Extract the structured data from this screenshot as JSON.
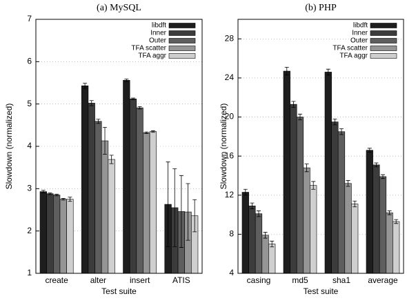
{
  "chart_data": [
    {
      "type": "bar",
      "title": "(a) MySQL",
      "xlabel": "Test suite",
      "ylabel": "Slowdown (normalized)",
      "categories": [
        "create",
        "alter",
        "insert",
        "ATIS"
      ],
      "series": [
        {
          "name": "libdft",
          "color": "#1e1e1e",
          "values": [
            2.93,
            5.43,
            5.56,
            2.63
          ],
          "errors": [
            0.03,
            0.06,
            0.03,
            1.0
          ]
        },
        {
          "name": "Inner",
          "color": "#3c3c3c",
          "values": [
            2.88,
            5.02,
            5.12,
            2.55
          ],
          "errors": [
            0.02,
            0.06,
            0.02,
            0.92
          ]
        },
        {
          "name": "Outer",
          "color": "#5e5e5e",
          "values": [
            2.85,
            4.59,
            4.91,
            2.46
          ],
          "errors": [
            0.02,
            0.05,
            0.03,
            0.85
          ]
        },
        {
          "name": "TFA scatter",
          "color": "#959595",
          "values": [
            2.75,
            4.13,
            4.32,
            2.45
          ],
          "errors": [
            0.02,
            0.32,
            0.02,
            0.67
          ]
        },
        {
          "name": "TFA aggr",
          "color": "#cfcfcf",
          "values": [
            2.75,
            3.69,
            4.35,
            2.36
          ],
          "errors": [
            0.05,
            0.1,
            0.02,
            0.38
          ]
        }
      ],
      "ylim": [
        1,
        7
      ],
      "yticks": [
        1,
        2,
        3,
        4,
        5,
        6,
        7
      ],
      "grid": true,
      "legend": "upper right"
    },
    {
      "type": "bar",
      "title": "(b) PHP",
      "xlabel": "Test suite",
      "ylabel": "Slowdown (normalized)",
      "categories": [
        "casing",
        "md5",
        "sha1",
        "average"
      ],
      "series": [
        {
          "name": "libdft",
          "color": "#1e1e1e",
          "values": [
            12.3,
            24.7,
            24.6,
            16.6
          ],
          "errors": [
            0.3,
            0.4,
            0.3,
            0.2
          ]
        },
        {
          "name": "Inner",
          "color": "#3c3c3c",
          "values": [
            10.9,
            21.3,
            19.5,
            15.1
          ],
          "errors": [
            0.3,
            0.3,
            0.3,
            0.2
          ]
        },
        {
          "name": "Outer",
          "color": "#5e5e5e",
          "values": [
            10.1,
            20.0,
            18.5,
            13.9
          ],
          "errors": [
            0.3,
            0.3,
            0.3,
            0.2
          ]
        },
        {
          "name": "TFA scatter",
          "color": "#959595",
          "values": [
            7.9,
            14.8,
            13.2,
            10.2
          ],
          "errors": [
            0.3,
            0.4,
            0.3,
            0.2
          ]
        },
        {
          "name": "TFA aggr",
          "color": "#cfcfcf",
          "values": [
            7.0,
            13.0,
            11.1,
            9.3
          ],
          "errors": [
            0.3,
            0.4,
            0.3,
            0.2
          ]
        }
      ],
      "ylim": [
        4,
        30
      ],
      "yticks": [
        4,
        8,
        12,
        16,
        20,
        24,
        28
      ],
      "grid": true,
      "legend": "upper right"
    }
  ]
}
